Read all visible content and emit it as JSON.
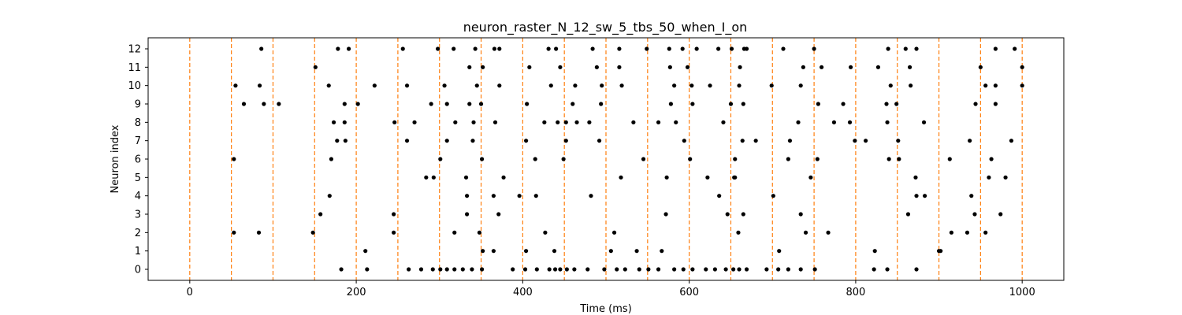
{
  "chart_data": {
    "type": "scatter",
    "title": "neuron_raster_N_12_sw_5_tbs_50_when_I_on",
    "xlabel": "Time (ms)",
    "ylabel": "Neuron index",
    "xlim": [
      -50,
      1050
    ],
    "ylim": [
      -0.6,
      12.6
    ],
    "xticks": [
      0,
      200,
      400,
      600,
      800,
      1000
    ],
    "yticks": [
      0,
      1,
      2,
      3,
      4,
      5,
      6,
      7,
      8,
      9,
      10,
      11,
      12
    ],
    "grid": false,
    "marker_color": "#000000",
    "vline_color": "#ff7f0e",
    "vlines": [
      0,
      50,
      100,
      150,
      200,
      250,
      300,
      350,
      400,
      450,
      500,
      550,
      600,
      650,
      700,
      750,
      800,
      850,
      900,
      950,
      1000
    ],
    "spikes": [
      {
        "neuron": 0,
        "times": [
          182,
          213,
          263,
          278,
          292,
          301,
          309,
          318,
          328,
          339,
          351,
          388,
          403,
          417,
          432,
          439,
          445,
          453,
          462,
          478,
          498,
          513,
          523,
          540,
          551,
          563,
          582,
          593,
          604,
          620,
          631,
          644,
          653,
          660,
          669,
          693,
          707,
          719,
          734,
          751,
          822,
          838,
          873
        ]
      },
      {
        "neuron": 1,
        "times": [
          211,
          352,
          365,
          404,
          438,
          506,
          537,
          567,
          708,
          823,
          900,
          902
        ]
      },
      {
        "neuron": 2,
        "times": [
          53,
          83,
          148,
          245,
          318,
          348,
          427,
          510,
          659,
          740,
          767,
          915,
          934,
          956
        ]
      },
      {
        "neuron": 3,
        "times": [
          157,
          245,
          333,
          371,
          572,
          646,
          665,
          734,
          863,
          943,
          974
        ]
      },
      {
        "neuron": 4,
        "times": [
          168,
          333,
          365,
          396,
          416,
          482,
          636,
          701,
          873,
          883,
          939
        ]
      },
      {
        "neuron": 5,
        "times": [
          284,
          293,
          332,
          377,
          518,
          573,
          622,
          654,
          655,
          746,
          872,
          960,
          980
        ]
      },
      {
        "neuron": 6,
        "times": [
          53,
          170,
          301,
          351,
          415,
          449,
          545,
          601,
          655,
          719,
          754,
          840,
          852,
          913,
          963
        ]
      },
      {
        "neuron": 7,
        "times": [
          177,
          187,
          261,
          309,
          340,
          404,
          452,
          492,
          594,
          664,
          680,
          721,
          799,
          812,
          851,
          937,
          987
        ]
      },
      {
        "neuron": 8,
        "times": [
          173,
          186,
          246,
          270,
          319,
          341,
          367,
          426,
          442,
          452,
          465,
          480,
          533,
          563,
          584,
          641,
          731,
          774,
          793,
          838,
          882
        ]
      },
      {
        "neuron": 9,
        "times": [
          65,
          89,
          107,
          186,
          202,
          290,
          309,
          336,
          350,
          405,
          460,
          494,
          578,
          604,
          650,
          665,
          755,
          785,
          837,
          849,
          944,
          968
        ]
      },
      {
        "neuron": 10,
        "times": [
          55,
          84,
          167,
          222,
          261,
          306,
          345,
          372,
          434,
          463,
          495,
          519,
          582,
          603,
          625,
          660,
          699,
          734,
          842,
          866,
          956,
          968,
          1000
        ]
      },
      {
        "neuron": 11,
        "times": [
          151,
          336,
          352,
          408,
          445,
          489,
          516,
          577,
          598,
          661,
          737,
          759,
          794,
          827,
          865,
          950,
          1000
        ]
      },
      {
        "neuron": 12,
        "times": [
          86,
          178,
          191,
          256,
          298,
          317,
          343,
          366,
          372,
          431,
          440,
          484,
          516,
          549,
          576,
          592,
          609,
          635,
          651,
          666,
          669,
          713,
          750,
          839,
          860,
          873,
          968,
          991
        ]
      }
    ]
  }
}
